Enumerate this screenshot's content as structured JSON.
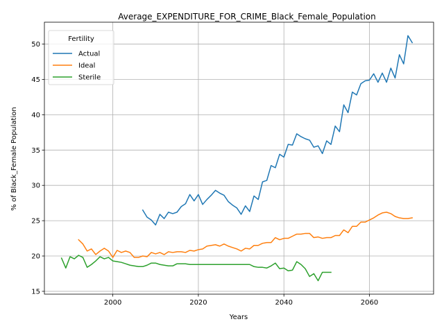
{
  "chart_data": {
    "type": "line",
    "title": "Average_EXPENDITURE_FOR_CRIME_Black_Female_Population",
    "xlabel": "Years",
    "ylabel": "% of Black_Female Population",
    "xlim": [
      1984,
      2075
    ],
    "ylim": [
      14.6,
      53.1
    ],
    "xticks": [
      2000,
      2020,
      2040,
      2060
    ],
    "yticks": [
      15,
      20,
      25,
      30,
      35,
      40,
      45,
      50
    ],
    "grid": true,
    "legend": {
      "title": "Fertility",
      "placement": "top-left"
    },
    "colors": {
      "Actual": "#1f77b4",
      "Ideal": "#ff7f0e",
      "Sterile": "#2ca02c"
    },
    "series": [
      {
        "name": "Actual",
        "x": [
          2007,
          2008,
          2009,
          2010,
          2011,
          2012,
          2013,
          2014,
          2015,
          2016,
          2017,
          2018,
          2019,
          2020,
          2021,
          2022,
          2023,
          2024,
          2025,
          2026,
          2027,
          2028,
          2029,
          2030,
          2031,
          2032,
          2033,
          2034,
          2035,
          2036,
          2037,
          2038,
          2039,
          2040,
          2041,
          2042,
          2043,
          2044,
          2045,
          2046,
          2047,
          2048,
          2049,
          2050,
          2051,
          2052,
          2053,
          2054,
          2055,
          2056,
          2057,
          2058,
          2059,
          2060,
          2061,
          2062,
          2063,
          2064,
          2065,
          2066,
          2067,
          2068,
          2069,
          2070
        ],
        "y": [
          26.5,
          25.5,
          25.1,
          24.4,
          25.9,
          25.3,
          26.2,
          26.0,
          26.2,
          27.0,
          27.4,
          28.7,
          27.8,
          28.7,
          27.3,
          28.0,
          28.6,
          29.3,
          28.9,
          28.6,
          27.7,
          27.2,
          26.8,
          25.9,
          27.1,
          26.3,
          28.5,
          28.0,
          30.5,
          30.7,
          32.8,
          32.5,
          34.4,
          34.0,
          35.8,
          35.7,
          37.3,
          36.9,
          36.6,
          36.4,
          35.4,
          35.6,
          34.5,
          36.3,
          35.8,
          38.4,
          37.6,
          41.4,
          40.3,
          43.2,
          42.8,
          44.4,
          44.8,
          44.9,
          45.8,
          44.6,
          45.9,
          44.6,
          46.6,
          45.2,
          48.5,
          47.2,
          51.2,
          50.2
        ]
      },
      {
        "name": "Ideal",
        "x": [
          1992,
          1993,
          1994,
          1995,
          1996,
          1997,
          1998,
          1999,
          2000,
          2001,
          2002,
          2003,
          2004,
          2005,
          2006,
          2007,
          2008,
          2009,
          2010,
          2011,
          2012,
          2013,
          2014,
          2015,
          2016,
          2017,
          2018,
          2019,
          2020,
          2021,
          2022,
          2023,
          2024,
          2025,
          2026,
          2027,
          2028,
          2029,
          2030,
          2031,
          2032,
          2033,
          2034,
          2035,
          2036,
          2037,
          2038,
          2039,
          2040,
          2041,
          2042,
          2043,
          2044,
          2045,
          2046,
          2047,
          2048,
          2049,
          2050,
          2051,
          2052,
          2053,
          2054,
          2055,
          2056,
          2057,
          2058,
          2059,
          2060,
          2061,
          2062,
          2063,
          2064,
          2065,
          2066,
          2067,
          2068,
          2069,
          2070
        ],
        "y": [
          22.3,
          21.7,
          20.7,
          21.0,
          20.2,
          20.7,
          21.1,
          20.7,
          19.8,
          20.8,
          20.5,
          20.7,
          20.5,
          19.8,
          19.8,
          20.0,
          19.9,
          20.5,
          20.3,
          20.5,
          20.2,
          20.6,
          20.5,
          20.6,
          20.6,
          20.5,
          20.8,
          20.7,
          20.9,
          21.0,
          21.4,
          21.5,
          21.6,
          21.4,
          21.7,
          21.4,
          21.2,
          21.0,
          20.7,
          21.1,
          21.0,
          21.5,
          21.5,
          21.8,
          21.9,
          21.9,
          22.6,
          22.3,
          22.5,
          22.5,
          22.8,
          23.1,
          23.1,
          23.2,
          23.2,
          22.6,
          22.7,
          22.5,
          22.6,
          22.6,
          22.9,
          22.9,
          23.7,
          23.3,
          24.2,
          24.2,
          24.8,
          24.8,
          25.1,
          25.4,
          25.8,
          26.1,
          26.2,
          26.0,
          25.6,
          25.4,
          25.3,
          25.3,
          25.4
        ]
      },
      {
        "name": "Sterile",
        "x": [
          1988,
          1989,
          1990,
          1991,
          1992,
          1993,
          1994,
          1995,
          1996,
          1997,
          1998,
          1999,
          2000,
          2001,
          2002,
          2003,
          2004,
          2005,
          2006,
          2007,
          2008,
          2009,
          2010,
          2011,
          2012,
          2013,
          2014,
          2015,
          2016,
          2017,
          2018,
          2019,
          2020,
          2021,
          2022,
          2023,
          2024,
          2025,
          2026,
          2027,
          2028,
          2029,
          2030,
          2031,
          2032,
          2033,
          2034,
          2035,
          2036,
          2037,
          2038,
          2039,
          2040,
          2041,
          2042,
          2043,
          2044,
          2045,
          2046,
          2047,
          2048,
          2049,
          2050,
          2051
        ],
        "y": [
          19.7,
          18.3,
          19.9,
          19.6,
          20.1,
          19.8,
          18.4,
          18.8,
          19.3,
          19.9,
          19.6,
          19.8,
          19.3,
          19.2,
          19.1,
          18.9,
          18.7,
          18.6,
          18.5,
          18.5,
          18.7,
          19.0,
          19.0,
          18.8,
          18.7,
          18.6,
          18.6,
          18.9,
          18.9,
          18.9,
          18.8,
          18.8,
          18.8,
          18.8,
          18.8,
          18.8,
          18.8,
          18.8,
          18.8,
          18.8,
          18.8,
          18.8,
          18.8,
          18.8,
          18.8,
          18.5,
          18.4,
          18.4,
          18.3,
          18.6,
          19.0,
          18.2,
          18.3,
          17.9,
          18.0,
          19.2,
          18.8,
          18.2,
          17.1,
          17.5,
          16.5,
          17.7,
          17.7,
          17.7
        ]
      }
    ]
  }
}
